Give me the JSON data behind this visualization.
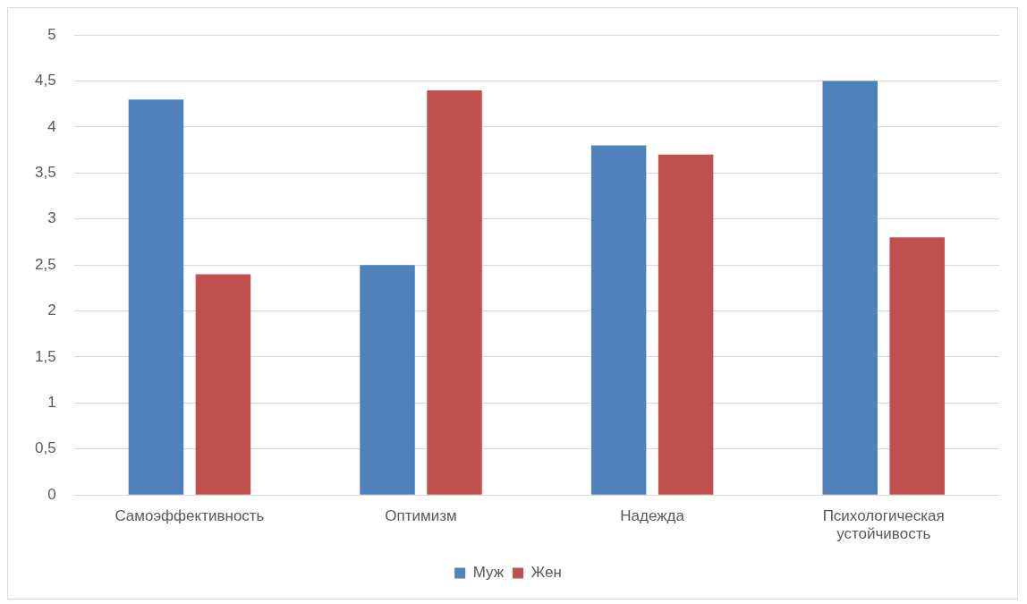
{
  "chart_data": {
    "type": "bar",
    "categories": [
      "Самоэффективность",
      "Оптимизм",
      "Надежда",
      "Психологическая устойчивость"
    ],
    "series": [
      {
        "name": "Муж",
        "color": "#4f81bd",
        "values": [
          4.3,
          2.5,
          3.8,
          4.5
        ]
      },
      {
        "name": "Жен",
        "color": "#c0504d",
        "values": [
          2.4,
          4.4,
          3.7,
          2.8
        ]
      }
    ],
    "ylim": [
      0,
      5
    ],
    "yticks": [
      0,
      {
        "value": 0.5,
        "label": "0,5"
      },
      1,
      {
        "value": 1.5,
        "label": "1,5"
      },
      2,
      {
        "value": 2.5,
        "label": "2,5"
      },
      3,
      {
        "value": 3.5,
        "label": "3,5"
      },
      4,
      {
        "value": 4.5,
        "label": "4,5"
      },
      5
    ],
    "grid": "y",
    "legend": "bottom"
  }
}
